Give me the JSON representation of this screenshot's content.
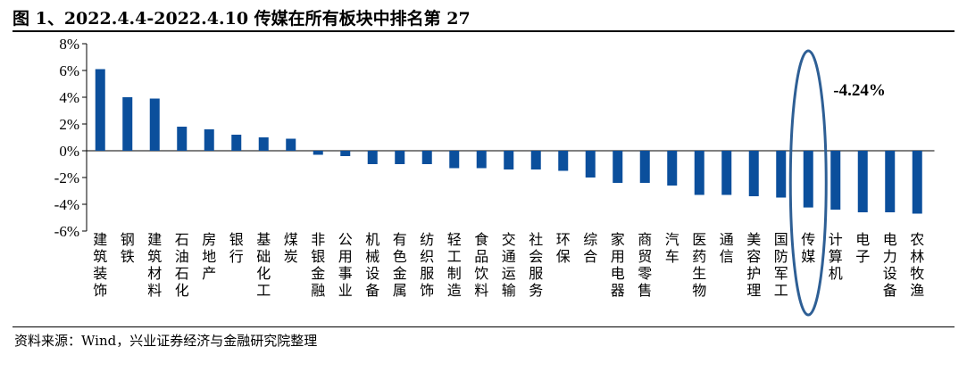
{
  "header": {
    "title": "图 1、2022.4.4-2022.4.10 传媒在所有板块中排名第 27"
  },
  "footer": {
    "source": "资料来源：Wind，兴业证券经济与金融研究院整理"
  },
  "chart_data": {
    "type": "bar",
    "title": "图 1、2022.4.4-2022.4.10 传媒在所有板块中排名第 27",
    "categories": [
      "建筑装饰",
      "钢铁",
      "建筑材料",
      "石油石化",
      "房地产",
      "银行",
      "基础化工",
      "煤炭",
      "非银金融",
      "公用事业",
      "机械设备",
      "有色金属",
      "纺织服饰",
      "轻工制造",
      "食品饮料",
      "交通运输",
      "社会服务",
      "环保",
      "综合",
      "家用电器",
      "商贸零售",
      "汽车",
      "医药生物",
      "通信",
      "美容护理",
      "国防军工",
      "传媒",
      "计算机",
      "电子",
      "电力设备",
      "农林牧渔"
    ],
    "values": [
      6.1,
      4.0,
      3.9,
      1.8,
      1.6,
      1.2,
      1.0,
      0.9,
      -0.3,
      -0.4,
      -1.0,
      -1.0,
      -1.0,
      -1.3,
      -1.3,
      -1.4,
      -1.4,
      -1.5,
      -2.0,
      -2.4,
      -2.4,
      -2.6,
      -3.3,
      -3.3,
      -3.4,
      -3.5,
      -4.24,
      -4.4,
      -4.6,
      -4.6,
      -4.7
    ],
    "ylim": [
      -6,
      8
    ],
    "yticks": [
      "-6%",
      "-4%",
      "-2%",
      "0%",
      "2%",
      "4%",
      "6%",
      "8%"
    ],
    "xlabel": "",
    "ylabel": "",
    "bar_color": "#0b4f9c",
    "highlight": {
      "category": "传媒",
      "label": "-4.24%",
      "ellipse_color": "#2e5f95"
    }
  }
}
